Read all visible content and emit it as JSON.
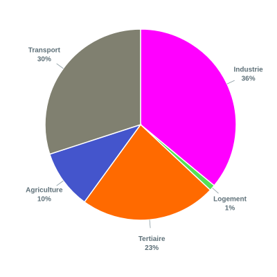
{
  "chart_data": {
    "type": "pie",
    "categories": [
      "Industrie",
      "Logement",
      "Tertiaire",
      "Agriculture",
      "Transport"
    ],
    "values": [
      36,
      1,
      23,
      10,
      30
    ],
    "value_labels": [
      "36%",
      "1%",
      "23%",
      "10%",
      "30%"
    ],
    "colors": [
      "#ff00ff",
      "#55e055",
      "#ff6a00",
      "#4455cc",
      "#808070"
    ]
  }
}
